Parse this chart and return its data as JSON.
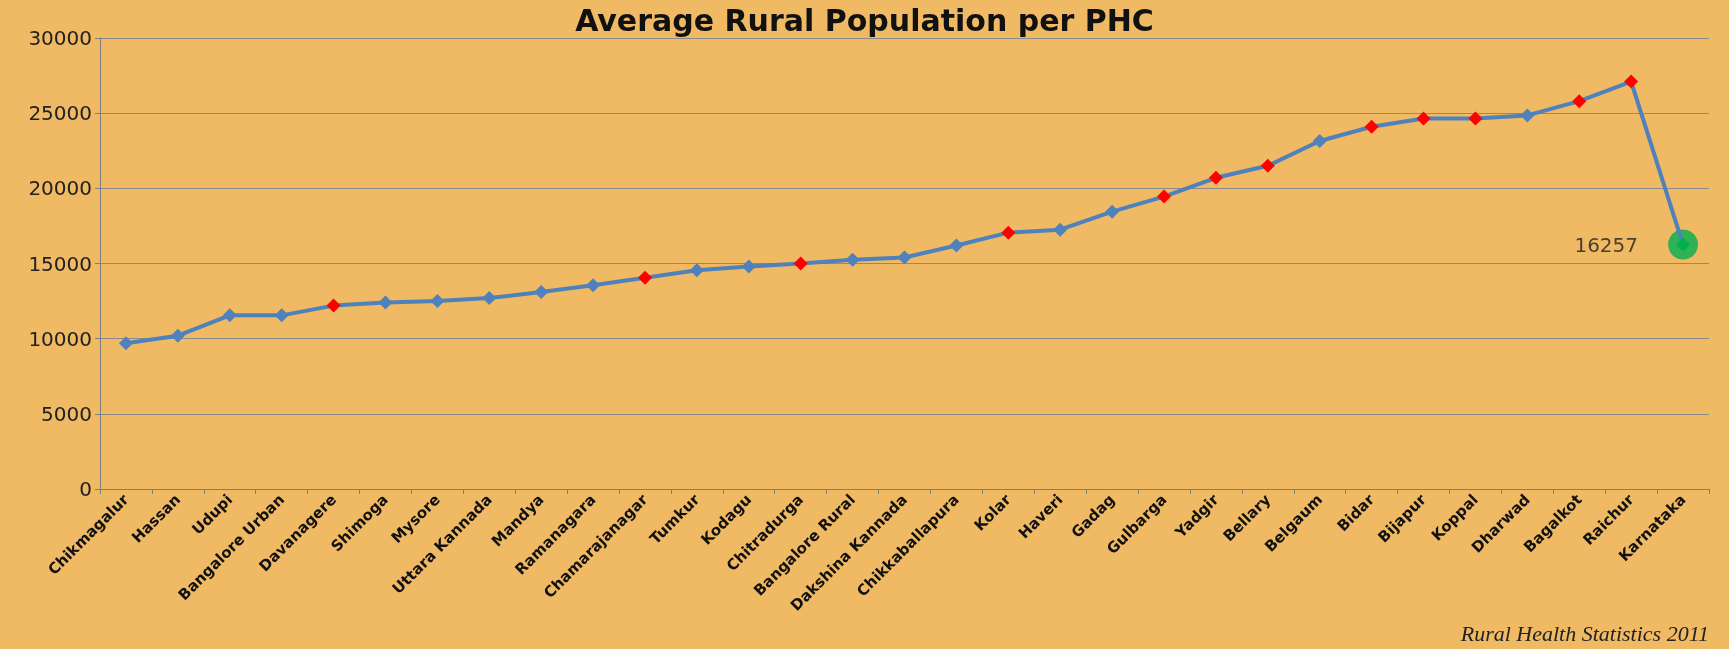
{
  "chart_data": {
    "type": "line",
    "title": "Average Rural Population per PHC",
    "categories": [
      "Chikmagalur",
      "Hassan",
      "Udupi",
      "Bangalore Urban",
      "Davanagere",
      "Shimoga",
      "Mysore",
      "Uttara Kannada",
      "Mandya",
      "Ramanagara",
      "Chamarajanagar",
      "Tumkur",
      "Kodagu",
      "Chitradurga",
      "Bangalore Rural",
      "Dakshina Kannada",
      "Chikkaballapura",
      "Kolar",
      "Haveri",
      "Gadag",
      "Gulbarga",
      "Yadgir",
      "Bellary",
      "Belgaum",
      "Bidar",
      "Bijapur",
      "Koppal",
      "Dharwad",
      "Bagalkot",
      "Raichur",
      "Karnataka"
    ],
    "series": [
      {
        "color": "#4f81bd",
        "marker": "diamond",
        "values": [
          9700,
          10200,
          11550,
          11550,
          12200,
          12400,
          12500,
          12700,
          13100,
          13550,
          14050,
          14550,
          14800,
          15000,
          15250,
          15400,
          16200,
          17050,
          17250,
          18450,
          19450,
          20700,
          21500,
          23150,
          24100,
          24650,
          24650,
          24850,
          25800,
          27100,
          16257
        ],
        "colors": [
          "#4f81bd",
          "#4f81bd",
          "#4f81bd",
          "#4f81bd",
          "#ff0000",
          "#4f81bd",
          "#4f81bd",
          "#4f81bd",
          "#4f81bd",
          "#4f81bd",
          "#ff0000",
          "#4f81bd",
          "#4f81bd",
          "#ff0000",
          "#4f81bd",
          "#4f81bd",
          "#4f81bd",
          "#ff0000",
          "#4f81bd",
          "#4f81bd",
          "#ff0000",
          "#ff0000",
          "#ff0000",
          "#4f81bd",
          "#ff0000",
          "#ff0000",
          "#ff0000",
          "#4f81bd",
          "#ff0000",
          "#ff0000",
          "#00b050"
        ]
      },
      {
        "type": "scatter",
        "color": "#00b050",
        "marker": "circle",
        "x": [
          "Karnataka"
        ],
        "values": [
          16257
        ],
        "value_labels": [
          "16257"
        ]
      }
    ],
    "ylim": [
      0,
      30000
    ],
    "yticks": [
      0,
      5000,
      10000,
      15000,
      20000,
      25000,
      30000
    ],
    "grid": "y",
    "annotations": [
      "Rural Health Statistics 2011"
    ]
  }
}
